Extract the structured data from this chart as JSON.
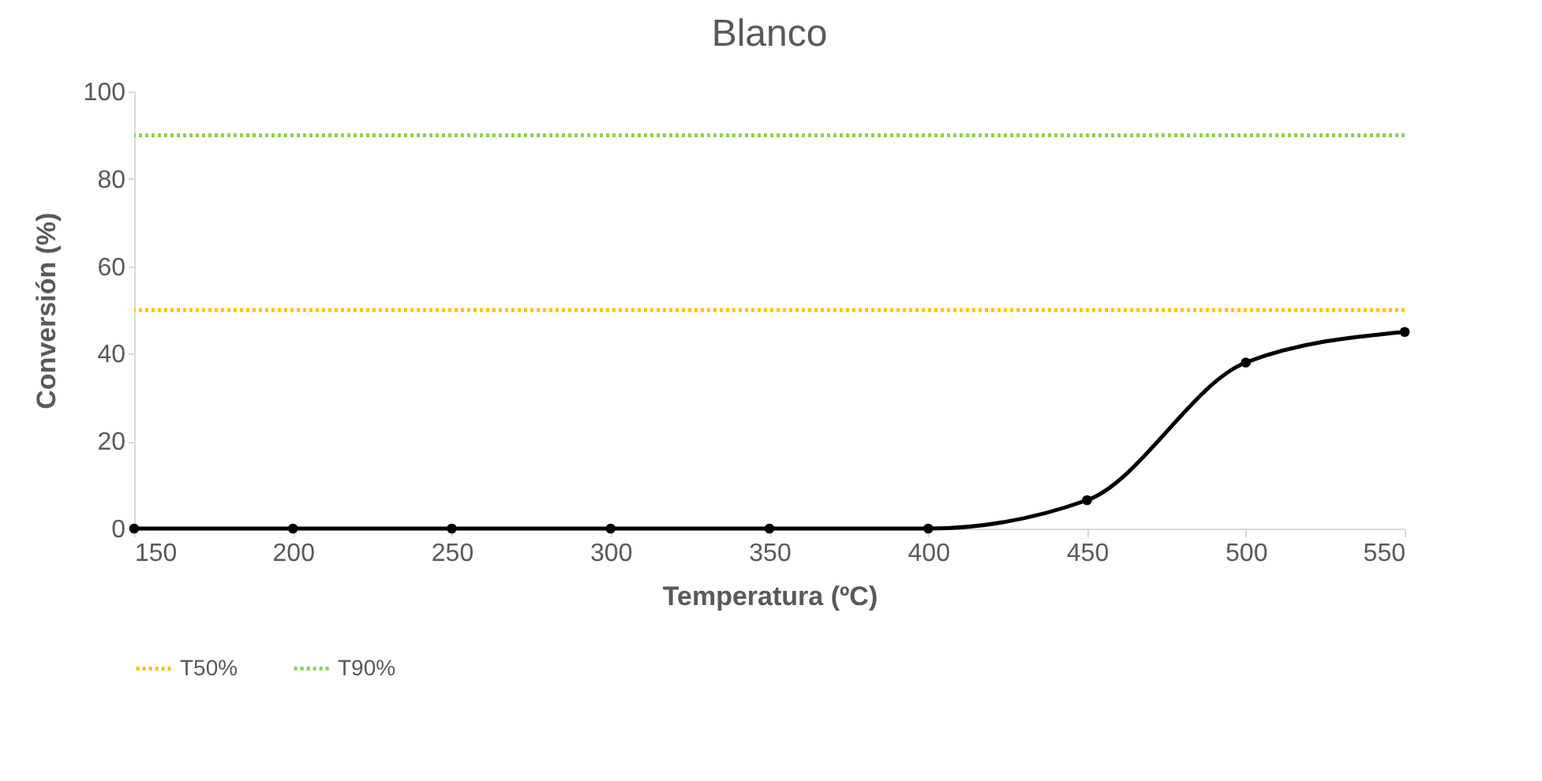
{
  "chart_data": {
    "type": "line",
    "title": "Blanco",
    "xlabel": "Temperatura (ºC)",
    "ylabel": "Conversión (%)",
    "x": [
      150,
      200,
      250,
      300,
      350,
      400,
      450,
      500,
      550
    ],
    "series": [
      {
        "color": "#000000",
        "values": [
          0,
          0,
          0,
          0,
          0,
          0,
          6.5,
          38,
          45
        ]
      }
    ],
    "xlim": [
      150,
      550
    ],
    "xticks": [
      150,
      200,
      250,
      300,
      350,
      400,
      450,
      500,
      550
    ],
    "ylim": [
      0,
      100
    ],
    "yticks": [
      0,
      20,
      40,
      60,
      80,
      100
    ],
    "ref_lines": [
      {
        "axis": "y",
        "value": 50,
        "label": "T50%",
        "color": "#ffc000",
        "line_style": "dotted"
      },
      {
        "axis": "y",
        "value": 90,
        "label": "T90%",
        "color": "#92d050",
        "line_style": "dotted"
      }
    ],
    "grid": false,
    "legend": "bottom",
    "marker": "circle",
    "line_style": "solid"
  }
}
